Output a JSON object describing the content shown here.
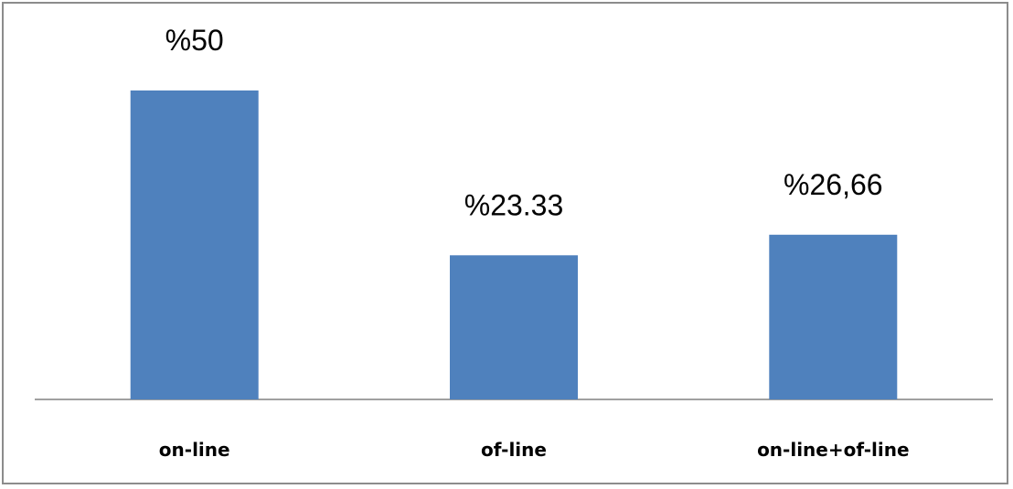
{
  "chart_data": {
    "type": "bar",
    "categories": [
      "on-line",
      "of-line",
      "on-line+of-line"
    ],
    "values": [
      50,
      23.33,
      26.66
    ],
    "data_labels": [
      "%50",
      "%23.33",
      "%26,66"
    ],
    "ylim": [
      0,
      60
    ],
    "grid": false,
    "legend": "none",
    "colors": {
      "bar": "#4F81BD",
      "axis": "#808080",
      "frame": "#8c8c8c"
    }
  }
}
